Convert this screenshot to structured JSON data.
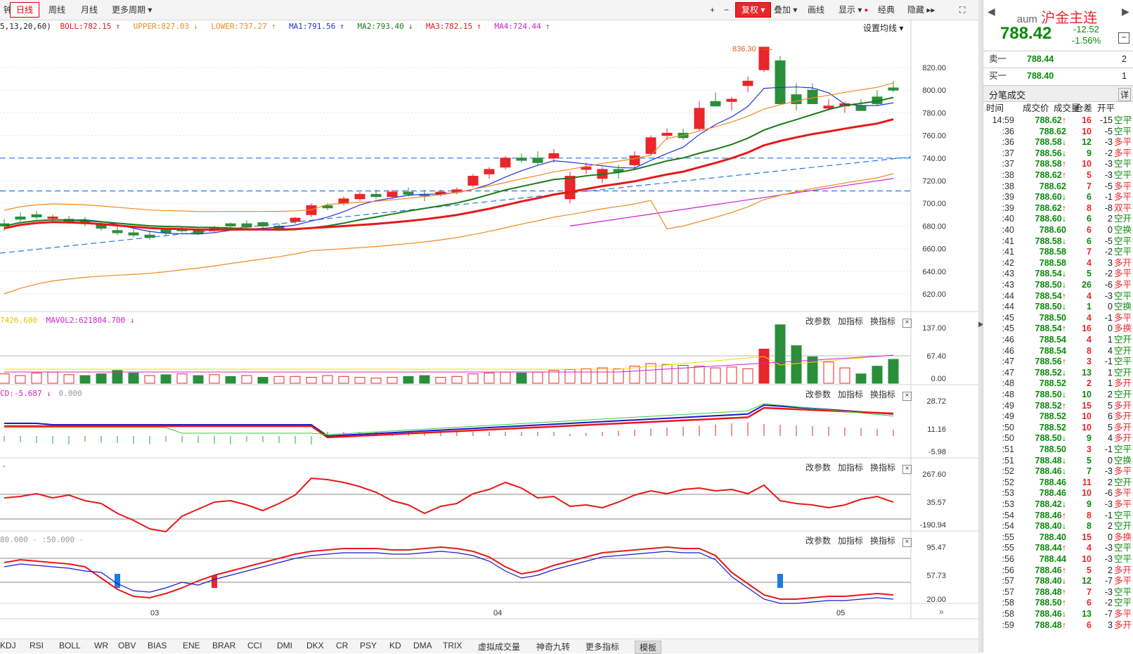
{
  "toolbar": {
    "left_cut": "钟",
    "periods": [
      "日线",
      "周线",
      "月线",
      "更多周期"
    ],
    "active_period": "日线",
    "zoom_in": "+",
    "zoom_out": "−",
    "fuquan": "复权",
    "overlay": "叠加",
    "draw": "画线",
    "display": "显示",
    "classic": "经典",
    "hide": "隐藏"
  },
  "boll_line": {
    "params": "5,13,20,60)",
    "boll": "BOLL:782.15",
    "upper": "UPPER:827.03",
    "lower": "LOWER:737.27",
    "ma1": "MA1:791.56",
    "ma2": "MA2:793.40",
    "ma3": "MA3:782.15",
    "ma4": "MA4:724.44",
    "settings": "设置均线"
  },
  "colors": {
    "up": "#e8262b",
    "down": "#2a8f3a",
    "ma1": "#2233dd",
    "ma2": "#1a7a1a",
    "ma3": "#e81818",
    "ma4": "#d020d0",
    "boll": "#f08a20",
    "dash": "#1e7ae0"
  },
  "main_chart": {
    "y_ticks": [
      "820.00",
      "800.00",
      "780.00",
      "760.00",
      "740.00",
      "720.00",
      "700.00",
      "680.00",
      "660.00",
      "640.00",
      "620.00"
    ],
    "high_label": "836.30"
  },
  "vol_pane": {
    "label_a": "7426.600",
    "label_b": "MAVOL2:621804.700",
    "y_ticks": [
      "137.00",
      "67.40",
      "0.00"
    ]
  },
  "macd_pane": {
    "label": "CD:-5.687",
    "label_b": "0.000",
    "y_ticks": [
      "28.72",
      "11.16",
      "-5.98"
    ]
  },
  "cci_pane": {
    "label": "-",
    "y_ticks": [
      "267.60",
      "35.57",
      "-190.94"
    ]
  },
  "kdj_pane": {
    "label_a": "80.000",
    "label_b": "50.000",
    "y_ticks": [
      "95.47",
      "57.73",
      "20.00"
    ]
  },
  "pane_buttons": {
    "params": "改参数",
    "add": "加指标",
    "switch": "换指标",
    "close": "×"
  },
  "x_axis": {
    "labels": [
      "03",
      "04",
      "05"
    ]
  },
  "bottom_tabs": [
    "KDJ",
    "RSI",
    "BOLL",
    "WR",
    "OBV",
    "BIAS",
    "ENE",
    "BRAR",
    "CCI",
    "DMI",
    "DKX",
    "CR",
    "PSY",
    "KD",
    "DMA",
    "TRIX",
    "虚拟成交量",
    "神奇九转",
    "更多指标",
    "模板"
  ],
  "selected_tab": "模板",
  "right_panel": {
    "symbol": "aum",
    "name": "沪金主连",
    "price": "788.42",
    "change": "-12.52",
    "change_pct": "-1.56%",
    "ask_label": "卖一",
    "ask_price": "788.44",
    "ask_vol": "2",
    "bid_label": "买一",
    "bid_price": "788.40",
    "bid_vol": "1",
    "trades_title": "分笔成交",
    "detail": "详",
    "headers": {
      "time": "时间",
      "price": "成交价",
      "vol": "成交量",
      "diff": "仓差",
      "nature": "开平"
    },
    "trades": [
      {
        "t": "14:59",
        "p": "788.62",
        "a": "↑",
        "v": "16",
        "d": "-15",
        "n": "空平"
      },
      {
        "t": ":36",
        "p": "788.62",
        "a": "",
        "v": "10",
        "d": "-5",
        "n": "空平"
      },
      {
        "t": ":36",
        "p": "788.58",
        "a": "↓",
        "v": "12",
        "d": "-3",
        "n": "多平"
      },
      {
        "t": ":37",
        "p": "788.56",
        "a": "↓",
        "v": "9",
        "d": "-2",
        "n": "多平"
      },
      {
        "t": ":37",
        "p": "788.58",
        "a": "↑",
        "v": "10",
        "d": "-3",
        "n": "空平"
      },
      {
        "t": ":38",
        "p": "788.62",
        "a": "↑",
        "v": "5",
        "d": "-3",
        "n": "空平"
      },
      {
        "t": ":38",
        "p": "788.62",
        "a": "",
        "v": "7",
        "d": "-5",
        "n": "多平"
      },
      {
        "t": ":39",
        "p": "788.60",
        "a": "↓",
        "v": "6",
        "d": "-1",
        "n": "多平"
      },
      {
        "t": ":39",
        "p": "788.62",
        "a": "↑",
        "v": "8",
        "d": "-8",
        "n": "双平"
      },
      {
        "t": ":40",
        "p": "788.60",
        "a": "↓",
        "v": "6",
        "d": "2",
        "n": "空开"
      },
      {
        "t": ":40",
        "p": "788.60",
        "a": "",
        "v": "6",
        "d": "0",
        "n": "空换"
      },
      {
        "t": ":41",
        "p": "788.58",
        "a": "↓",
        "v": "6",
        "d": "-5",
        "n": "空平"
      },
      {
        "t": ":41",
        "p": "788.58",
        "a": "",
        "v": "7",
        "d": "-2",
        "n": "空平"
      },
      {
        "t": ":42",
        "p": "788.58",
        "a": "",
        "v": "4",
        "d": "3",
        "n": "多开"
      },
      {
        "t": ":43",
        "p": "788.54",
        "a": "↓",
        "v": "5",
        "d": "-2",
        "n": "多平"
      },
      {
        "t": ":43",
        "p": "788.50",
        "a": "↓",
        "v": "26",
        "d": "-6",
        "n": "多平"
      },
      {
        "t": ":44",
        "p": "788.54",
        "a": "↑",
        "v": "4",
        "d": "-3",
        "n": "空平"
      },
      {
        "t": ":44",
        "p": "788.50",
        "a": "↓",
        "v": "1",
        "d": "0",
        "n": "空换"
      },
      {
        "t": ":45",
        "p": "788.50",
        "a": "",
        "v": "4",
        "d": "-1",
        "n": "多平"
      },
      {
        "t": ":45",
        "p": "788.54",
        "a": "↑",
        "v": "16",
        "d": "0",
        "n": "多换"
      },
      {
        "t": ":46",
        "p": "788.54",
        "a": "",
        "v": "4",
        "d": "1",
        "n": "空开"
      },
      {
        "t": ":46",
        "p": "788.54",
        "a": "",
        "v": "8",
        "d": "4",
        "n": "空开"
      },
      {
        "t": ":47",
        "p": "788.56",
        "a": "↑",
        "v": "3",
        "d": "-1",
        "n": "空平"
      },
      {
        "t": ":47",
        "p": "788.52",
        "a": "↓",
        "v": "13",
        "d": "1",
        "n": "空开"
      },
      {
        "t": ":48",
        "p": "788.52",
        "a": "",
        "v": "2",
        "d": "1",
        "n": "多开"
      },
      {
        "t": ":48",
        "p": "788.50",
        "a": "↓",
        "v": "10",
        "d": "2",
        "n": "空开"
      },
      {
        "t": ":49",
        "p": "788.52",
        "a": "↑",
        "v": "15",
        "d": "5",
        "n": "多开"
      },
      {
        "t": ":49",
        "p": "788.52",
        "a": "",
        "v": "10",
        "d": "6",
        "n": "多开"
      },
      {
        "t": ":50",
        "p": "788.52",
        "a": "",
        "v": "10",
        "d": "5",
        "n": "多开"
      },
      {
        "t": ":50",
        "p": "788.50",
        "a": "↓",
        "v": "9",
        "d": "4",
        "n": "多开"
      },
      {
        "t": ":51",
        "p": "788.50",
        "a": "",
        "v": "3",
        "d": "-1",
        "n": "空平"
      },
      {
        "t": ":51",
        "p": "788.48",
        "a": "↓",
        "v": "5",
        "d": "0",
        "n": "空换"
      },
      {
        "t": ":52",
        "p": "788.46",
        "a": "↓",
        "v": "7",
        "d": "-3",
        "n": "多平"
      },
      {
        "t": ":52",
        "p": "788.46",
        "a": "",
        "v": "11",
        "d": "2",
        "n": "空开"
      },
      {
        "t": ":53",
        "p": "788.46",
        "a": "",
        "v": "10",
        "d": "-6",
        "n": "多平"
      },
      {
        "t": ":53",
        "p": "788.42",
        "a": "↓",
        "v": "9",
        "d": "-3",
        "n": "多平"
      },
      {
        "t": ":54",
        "p": "788.46",
        "a": "↑",
        "v": "8",
        "d": "-1",
        "n": "空平"
      },
      {
        "t": ":54",
        "p": "788.40",
        "a": "↓",
        "v": "8",
        "d": "2",
        "n": "空开"
      },
      {
        "t": ":55",
        "p": "788.40",
        "a": "",
        "v": "15",
        "d": "0",
        "n": "多换"
      },
      {
        "t": ":55",
        "p": "788.44",
        "a": "↑",
        "v": "4",
        "d": "-3",
        "n": "空平"
      },
      {
        "t": ":56",
        "p": "788.44",
        "a": "",
        "v": "10",
        "d": "-3",
        "n": "空平"
      },
      {
        "t": ":56",
        "p": "788.46",
        "a": "↑",
        "v": "5",
        "d": "2",
        "n": "多开"
      },
      {
        "t": ":57",
        "p": "788.40",
        "a": "↓",
        "v": "12",
        "d": "-7",
        "n": "多平"
      },
      {
        "t": ":57",
        "p": "788.48",
        "a": "↑",
        "v": "7",
        "d": "-3",
        "n": "空平"
      },
      {
        "t": ":58",
        "p": "788.50",
        "a": "↑",
        "v": "6",
        "d": "-2",
        "n": "空平"
      },
      {
        "t": ":58",
        "p": "788.46",
        "a": "↓",
        "v": "13",
        "d": "-7",
        "n": "多平"
      },
      {
        "t": ":59",
        "p": "788.48",
        "a": "↑",
        "v": "6",
        "d": "3",
        "n": "多开"
      }
    ]
  }
}
